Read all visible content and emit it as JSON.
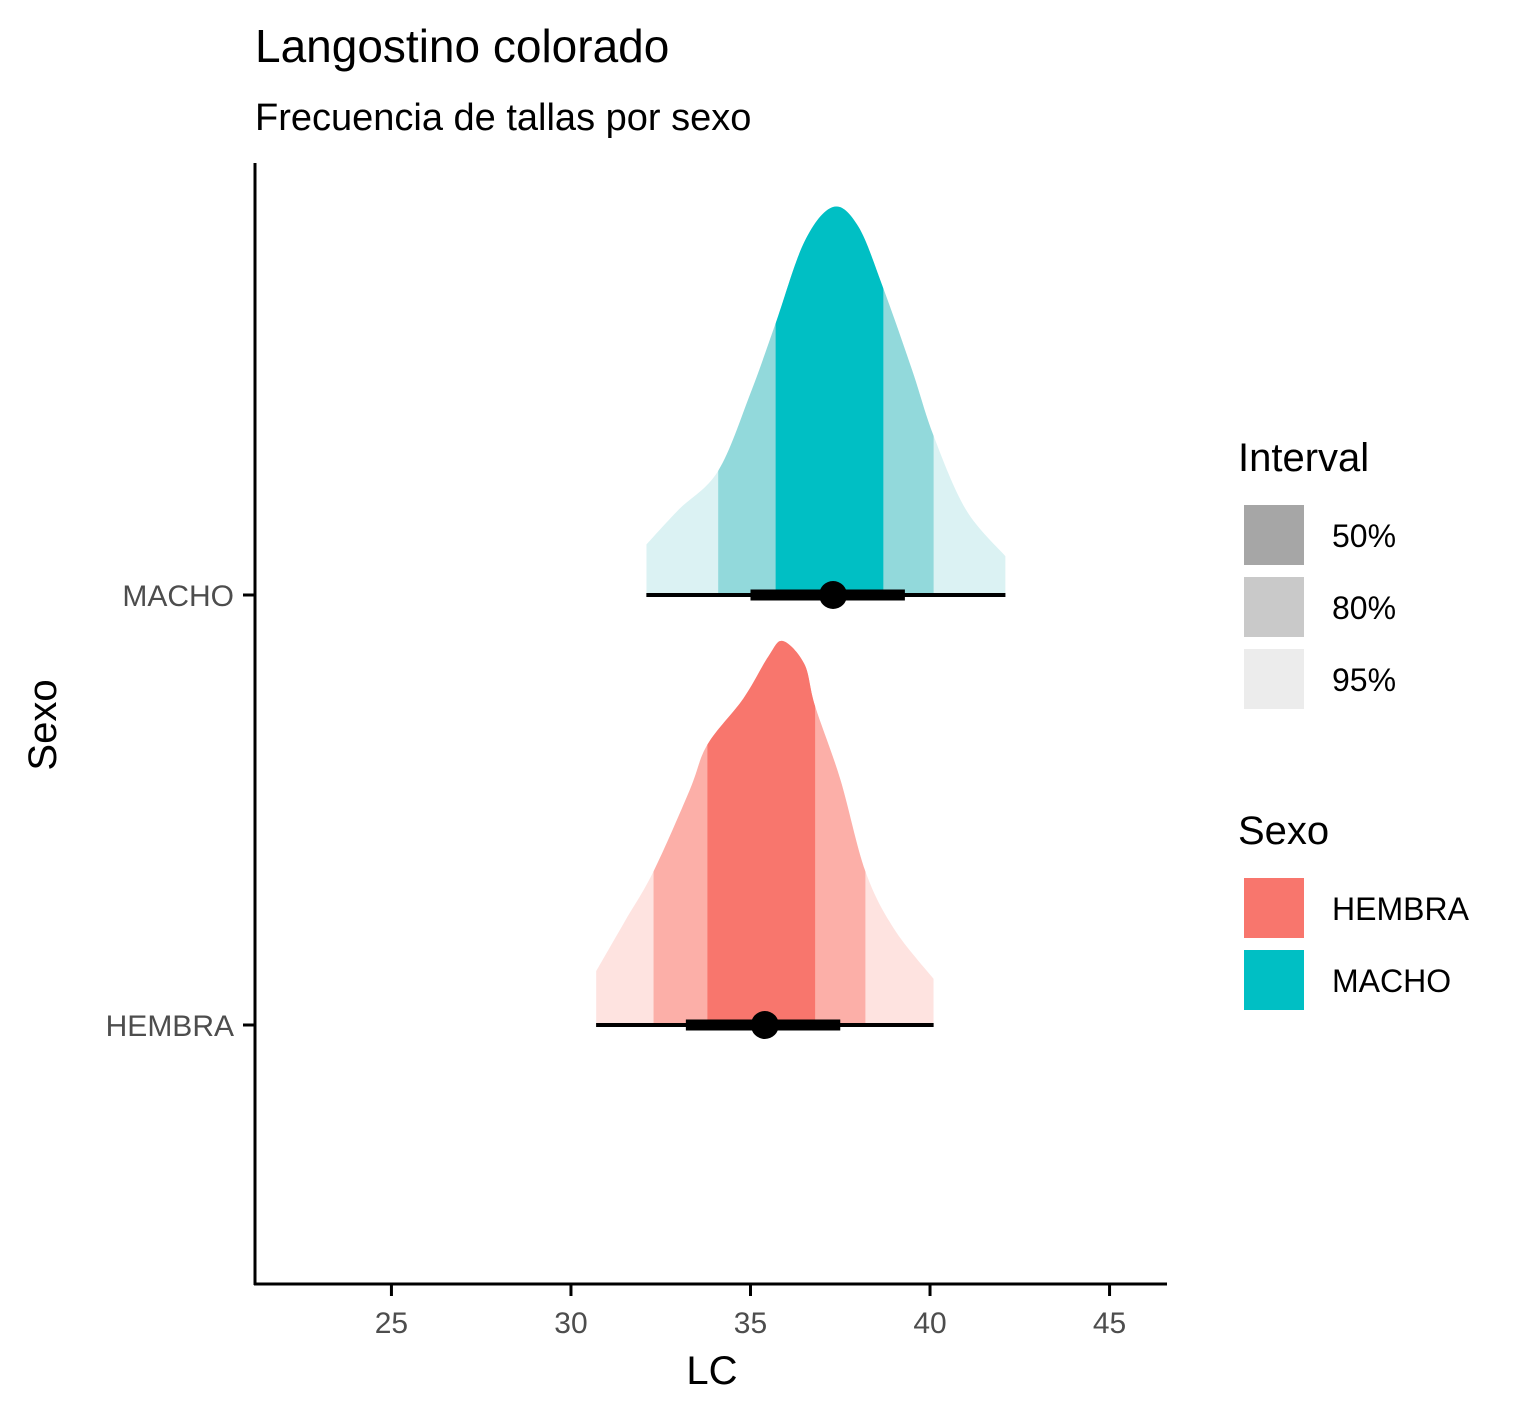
{
  "chart_data": {
    "type": "halfeye",
    "title": "Langostino colorado",
    "subtitle": "Frecuencia de tallas por sexo",
    "xlabel": "LC",
    "ylabel": "Sexo",
    "xlim": [
      21.2,
      46.6
    ],
    "xticks": [
      25,
      30,
      35,
      40,
      45
    ],
    "categories": [
      "HEMBRA",
      "MACHO"
    ],
    "grid": false,
    "series": [
      {
        "name": "HEMBRA",
        "color": "#F8766D",
        "color80": "#FCAFA8",
        "color95": "#FEE3E0",
        "point": 35.4,
        "interval_66": [
          33.2,
          37.5
        ],
        "interval_95": [
          30.7,
          40.1
        ],
        "band50": [
          33.8,
          36.8
        ],
        "band80": [
          32.3,
          38.2
        ],
        "band95": [
          30.7,
          40.1
        ],
        "density": [
          [
            30.7,
            0.14
          ],
          [
            31.5,
            0.27
          ],
          [
            32.3,
            0.4
          ],
          [
            33.3,
            0.61
          ],
          [
            33.8,
            0.73
          ],
          [
            34.8,
            0.85
          ],
          [
            35.5,
            0.96
          ],
          [
            35.9,
            1.0
          ],
          [
            36.5,
            0.94
          ],
          [
            36.8,
            0.83
          ],
          [
            37.5,
            0.64
          ],
          [
            38.2,
            0.4
          ],
          [
            39.0,
            0.25
          ],
          [
            40.1,
            0.12
          ]
        ]
      },
      {
        "name": "MACHO",
        "color": "#00BFC4",
        "color80": "#92D9DB",
        "color95": "#DBF2F3",
        "point": 37.3,
        "interval_66": [
          35.0,
          39.3
        ],
        "interval_95": [
          32.1,
          42.1
        ],
        "band50": [
          35.7,
          38.7
        ],
        "band80": [
          34.1,
          40.1
        ],
        "band95": [
          32.1,
          42.1
        ],
        "density": [
          [
            32.1,
            0.13
          ],
          [
            33.0,
            0.22
          ],
          [
            34.1,
            0.32
          ],
          [
            35.0,
            0.52
          ],
          [
            35.7,
            0.7
          ],
          [
            36.5,
            0.91
          ],
          [
            37.3,
            1.0
          ],
          [
            38.0,
            0.95
          ],
          [
            38.7,
            0.79
          ],
          [
            39.5,
            0.58
          ],
          [
            40.1,
            0.41
          ],
          [
            41.0,
            0.22
          ],
          [
            42.1,
            0.1
          ]
        ]
      }
    ],
    "legend": {
      "placement": "right",
      "interval": {
        "title": "Interval",
        "items": [
          {
            "label": "50%",
            "color": "#A6A6A6"
          },
          {
            "label": "80%",
            "color": "#C9C9C9"
          },
          {
            "label": "95%",
            "color": "#ECECEC"
          }
        ]
      },
      "sexo": {
        "title": "Sexo",
        "items": [
          {
            "label": "HEMBRA",
            "color": "#F8766D"
          },
          {
            "label": "MACHO",
            "color": "#00BFC4"
          }
        ]
      }
    }
  }
}
